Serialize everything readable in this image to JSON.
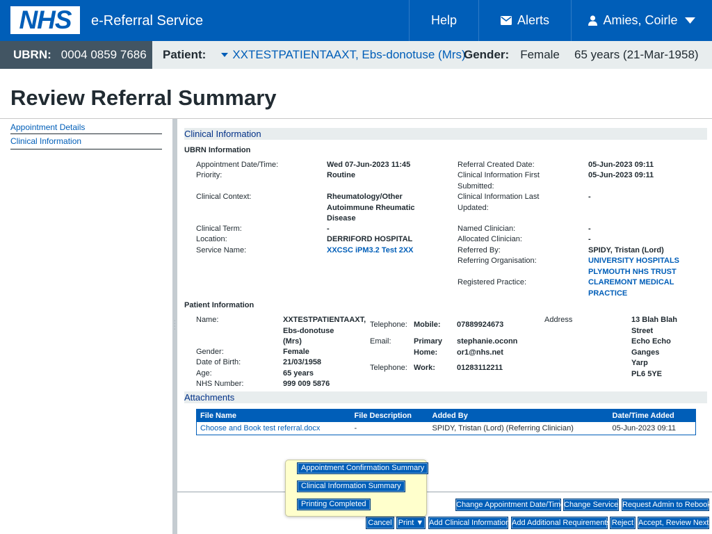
{
  "header": {
    "logo_text": "NHS",
    "app_name": "e-Referral Service",
    "nav": {
      "help": "Help",
      "alerts": "Alerts",
      "user": "Amies, Coirle"
    }
  },
  "banner": {
    "ubrn_label": "UBRN:",
    "ubrn_value": "0004 0859 7686",
    "patient_label": "Patient:",
    "patient_value": "XXTESTPATIENTAAXT, Ebs-donotuse (Mrs)",
    "gender_label": "Gender:",
    "gender_value": "Female",
    "age_dob": "65 years (21-Mar-1958)"
  },
  "page_title": "Review Referral Summary",
  "sidenav": {
    "items": [
      "Appointment Details",
      "Clinical Information"
    ]
  },
  "clinical": {
    "section_title": "Clinical Information",
    "ubrn_heading": "UBRN Information",
    "appt_label": "Appointment Date/Time:",
    "appt_value": "Wed 07-Jun-2023 11:45",
    "priority_label": "Priority:",
    "priority_value": "Routine",
    "context_label": "Clinical Context:",
    "context_value": [
      "Rheumatology/Other",
      "Autoimmune Rheumatic",
      "Disease"
    ],
    "term_label": "Clinical Term:",
    "term_value": "-",
    "location_label": "Location:",
    "location_value": "DERRIFORD HOSPITAL",
    "service_label": "Service Name:",
    "service_value": "XXCSC iPM3.2 Test 2XX",
    "created_label": "Referral Created Date:",
    "created_value": "05-Jun-2023 09:11",
    "first_sub_label": [
      "Clinical Information First",
      "Submitted:"
    ],
    "first_sub_value": "05-Jun-2023 09:11",
    "last_upd_label": [
      "Clinical Information Last",
      "Updated:"
    ],
    "last_upd_value": "-",
    "named_label": "Named Clinician:",
    "named_value": "-",
    "allocated_label": "Allocated Clinician:",
    "allocated_value": "-",
    "referred_by_label": "Referred By:",
    "referred_by_value": "SPIDY, Tristan (Lord)",
    "ref_org_label": "Referring Organisation:",
    "ref_org_value": [
      "UNIVERSITY HOSPITALS",
      "PLYMOUTH NHS TRUST"
    ],
    "reg_practice_label": "Registered Practice:",
    "reg_practice_value": [
      "CLAREMONT MEDICAL",
      "PRACTICE"
    ]
  },
  "patient": {
    "heading": "Patient Information",
    "name_label": "Name:",
    "name_value": [
      "XXTESTPATIENTAAXT,",
      "Ebs-donotuse",
      "(Mrs)"
    ],
    "gender_label": "Gender:",
    "gender_value": "Female",
    "dob_label": "Date of Birth:",
    "dob_value": "21/03/1958",
    "age_label": "Age:",
    "age_value": "65 years",
    "nhs_label": "NHS Number:",
    "nhs_value": "999 009 5876",
    "tel1_label": "Telephone:",
    "tel1_type": "Mobile:",
    "tel1_value": "07889924673",
    "email_label": "Email:",
    "email_type": [
      "Primary",
      "Home:"
    ],
    "email_value": [
      "stephanie.oconn",
      "or1@nhs.net"
    ],
    "tel2_label": "Telephone:",
    "tel2_type": "Work:",
    "tel2_value": "01283112211",
    "address_label": "Address",
    "address_value": [
      "13 Blah Blah",
      "Street",
      "Echo Echo",
      "Ganges",
      "Yarp",
      "PL6 5YE"
    ]
  },
  "attachments": {
    "section_title": "Attachments",
    "columns": [
      "File Name",
      "File Description",
      "Added By",
      "Date/Time Added"
    ],
    "rows": [
      [
        "Choose and Book test referral.docx",
        "-",
        "SPIDY, Tristan (Lord) (Referring Clinician)",
        "05-Jun-2023 09:11"
      ]
    ]
  },
  "print_menu": {
    "items": [
      "Appointment Confirmation Summary",
      "Clinical Information Summary",
      "Printing Completed"
    ]
  },
  "buttons": {
    "change_appt": "Change Appointment Date/Time",
    "change_service": "Change Service",
    "request_admin": "Request Admin to Rebook",
    "cancel": "Cancel",
    "print": "Print ▼",
    "add_clinical": "Add Clinical Information",
    "add_requirements": "Add Additional Requirements",
    "reject": "Reject",
    "accept": "Accept, Review Next"
  },
  "colors": {
    "nhs_blue": "#005eb8",
    "dark_slate": "#425563",
    "banner_grey": "#e8edee",
    "popup_yellow": "#ffffcc"
  },
  "icons": {
    "alerts": "envelope-icon",
    "user": "person-icon",
    "user_menu": "chevron-down-icon",
    "patient_toggle": "triangle-down-icon"
  }
}
